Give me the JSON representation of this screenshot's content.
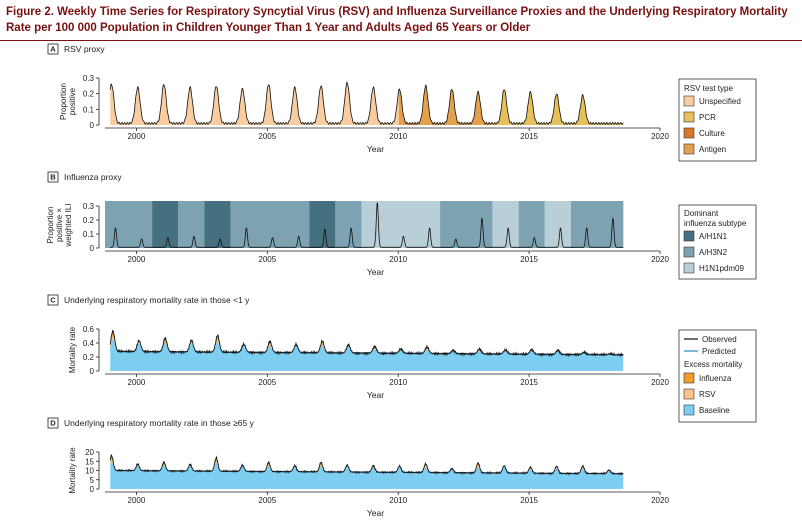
{
  "figure_title": "Figure 2. Weekly Time Series for Respiratory Syncytial Virus (RSV) and Influenza Surveillance Proxies and the Underlying Respiratory Mortality Rate per 100 000 Population in Children Younger Than 1 Year and Adults Aged 65 Years or Older",
  "colors": {
    "unspecified": "#f9cda0",
    "pcr": "#e6c05a",
    "culture": "#d9782a",
    "antigen": "#e5a04e",
    "h1n1": "#45707f",
    "h3n2": "#7da3b3",
    "h1n1pdm09": "#b9cfd8",
    "influenza_excess": "#f29d2a",
    "rsv_excess": "#f9c58c",
    "baseline": "#7dcef0",
    "observed": "#111111",
    "predicted": "#2a8bbf"
  },
  "chart_data": [
    {
      "panel": "A",
      "title": "RSV proxy",
      "type": "area",
      "ylabel": "Proportion positive",
      "xlabel": "Year",
      "xlim": [
        1998.8,
        2020
      ],
      "ylim": [
        0,
        0.3
      ],
      "yticks": [
        "0",
        "0.1",
        "0.2",
        "0.3"
      ],
      "xticks": [
        "2000",
        "2005",
        "2010",
        "2015",
        "2020"
      ],
      "season_peaks": [
        0.25,
        0.23,
        0.25,
        0.23,
        0.24,
        0.22,
        0.25,
        0.23,
        0.24,
        0.26,
        0.23,
        0.22,
        0.24,
        0.22,
        0.2,
        0.22,
        0.2,
        0.19,
        0.18
      ],
      "legend_title": "RSV test type",
      "legend": [
        "Unspecified",
        "PCR",
        "Culture",
        "Antigen"
      ],
      "test_type_periods": [
        {
          "type": "Unspecified",
          "from": 1998.8,
          "to": 2010
        },
        {
          "type": "Antigen",
          "from": 2010,
          "to": 2013.5
        },
        {
          "type": "PCR",
          "from": 2013.5,
          "to": 2018.6
        }
      ]
    },
    {
      "panel": "B",
      "title": "Influenza proxy",
      "type": "line",
      "ylabel": "Proportion positive × weighted ILI",
      "xlabel": "Year",
      "xlim": [
        1998.8,
        2020
      ],
      "ylim": [
        0,
        0.3
      ],
      "yticks": [
        "0",
        "0.1",
        "0.2",
        "0.3"
      ],
      "xticks": [
        "2000",
        "2005",
        "2010",
        "2015",
        "2020"
      ],
      "season_peaks": [
        0.14,
        0.06,
        0.07,
        0.08,
        0.06,
        0.14,
        0.07,
        0.08,
        0.13,
        0.14,
        0.32,
        0.08,
        0.14,
        0.06,
        0.21,
        0.14,
        0.07,
        0.14,
        0.14,
        0.21
      ],
      "legend_title": "Dominant influenza subtype",
      "legend": [
        "A/H1N1",
        "A/H3N2",
        "H1N1pdm09"
      ],
      "subtype_periods": [
        {
          "subtype": "A/H3N2",
          "from": 1998.8,
          "to": 2000.6
        },
        {
          "subtype": "A/H1N1",
          "from": 2000.6,
          "to": 2001.6
        },
        {
          "subtype": "A/H3N2",
          "from": 2001.6,
          "to": 2002.6
        },
        {
          "subtype": "A/H1N1",
          "from": 2002.6,
          "to": 2003.6
        },
        {
          "subtype": "A/H3N2",
          "from": 2003.6,
          "to": 2006.6
        },
        {
          "subtype": "A/H1N1",
          "from": 2006.6,
          "to": 2007.6
        },
        {
          "subtype": "A/H3N2",
          "from": 2007.6,
          "to": 2008.6
        },
        {
          "subtype": "H1N1pdm09",
          "from": 2008.6,
          "to": 2011.6
        },
        {
          "subtype": "A/H3N2",
          "from": 2011.6,
          "to": 2013.6
        },
        {
          "subtype": "H1N1pdm09",
          "from": 2013.6,
          "to": 2014.6
        },
        {
          "subtype": "A/H3N2",
          "from": 2014.6,
          "to": 2015.6
        },
        {
          "subtype": "H1N1pdm09",
          "from": 2015.6,
          "to": 2016.6
        },
        {
          "subtype": "A/H3N2",
          "from": 2016.6,
          "to": 2018.6
        }
      ]
    },
    {
      "panel": "C",
      "title": "Underlying respiratory mortality rate in those <1 y",
      "type": "area",
      "ylabel": "Mortality rate",
      "xlabel": "Year",
      "xlim": [
        1998.8,
        2020
      ],
      "ylim": [
        0,
        0.6
      ],
      "yticks": [
        "0",
        "0.2",
        "0.4",
        "0.6"
      ],
      "xticks": [
        "2000",
        "2005",
        "2010",
        "2015",
        "2020"
      ],
      "baseline_level": 0.28,
      "season_peaks": [
        0.6,
        0.5,
        0.53,
        0.51,
        0.55,
        0.48,
        0.44,
        0.48,
        0.47,
        0.44,
        0.4,
        0.37,
        0.38,
        0.37,
        0.35,
        0.37,
        0.36,
        0.36,
        0.32,
        0.3
      ],
      "legend": [
        "Observed",
        "Predicted"
      ],
      "legend_title": "Excess mortality",
      "excess_legend": [
        "Influenza",
        "RSV",
        "Baseline"
      ]
    },
    {
      "panel": "D",
      "title": "Underlying respiratory mortality rate in those ≥65 y",
      "type": "area",
      "ylabel": "Mortality rate",
      "xlabel": "Year",
      "xlim": [
        1998.8,
        2020
      ],
      "ylim": [
        0,
        20
      ],
      "yticks": [
        "0",
        "5",
        "10",
        "15",
        "20"
      ],
      "xticks": [
        "2000",
        "2005",
        "2010",
        "2015",
        "2020"
      ],
      "baseline_level": 10,
      "season_peaks": [
        19,
        15,
        16,
        15,
        18,
        16,
        15,
        15.5,
        16,
        15,
        14.5,
        15,
        15,
        14,
        15.5,
        16,
        14,
        15,
        15,
        13
      ]
    }
  ]
}
